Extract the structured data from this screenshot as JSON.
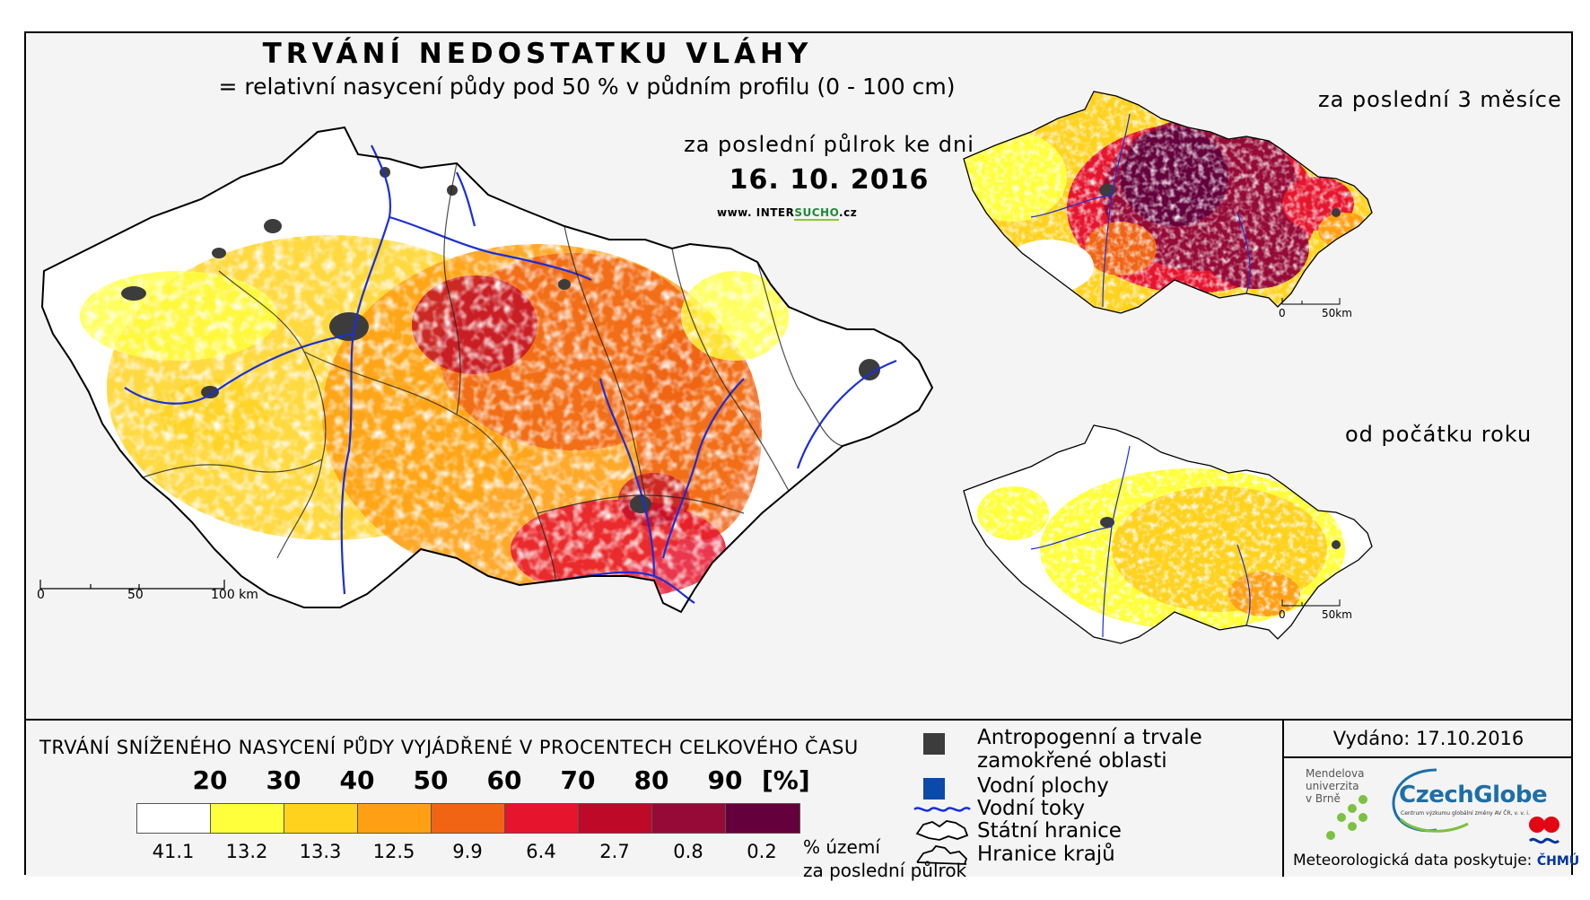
{
  "header": {
    "title": "TRVÁNÍ NEDOSTATKU VLÁHY",
    "subtitle": "= relativní nasycení půdy pod 50 % v půdním profilu (0 - 100 cm)",
    "period": "za poslední půlrok ke dni",
    "date": "16. 10. 2016",
    "website_prefix": "www. INTER",
    "website_brand": "SUCHO",
    "website_suffix": ".cz"
  },
  "insets": {
    "three_months": {
      "label": "za poslední 3 měsíce",
      "scale_zero": "0",
      "scale_end": "50km"
    },
    "year": {
      "label": "od počátku roku",
      "scale_zero": "0",
      "scale_end": "50km"
    }
  },
  "main_scale": {
    "zero": "0",
    "mid": "50",
    "end": "100 km"
  },
  "legend": {
    "title": "TRVÁNÍ SNÍŽENÉHO NASYCENÍ PŮDY VYJÁDŘENÉ V PROCENTECH CELKOVÉHO ČASU",
    "ticks": [
      "20",
      "30",
      "40",
      "50",
      "60",
      "70",
      "80",
      "90"
    ],
    "unit": "[%]",
    "colors": [
      "#ffffff",
      "#ffff3c",
      "#ffd21e",
      "#ffa014",
      "#f06414",
      "#e6142d",
      "#be0a28",
      "#960a37",
      "#64003c"
    ],
    "shares": [
      "41.1",
      "13.2",
      "13.3",
      "12.5",
      "9.9",
      "6.4",
      "2.7",
      "0.8",
      "0.2"
    ],
    "share_note_line1": "% území",
    "share_note_line2": "za poslední půlrok"
  },
  "key": {
    "anthropogenic_line1": "Antropogenní a trvale",
    "anthropogenic_line2": "zamokřené oblasti",
    "water_bodies": "Vodní plochy",
    "rivers": "Vodní toky",
    "state_border": "Státní hranice",
    "regional_border": "Hranice krajů",
    "anthropogenic_color": "#3c3c3c",
    "water_color": "#0a4aa8",
    "river_color": "#1a2fd6"
  },
  "info": {
    "issued": "Vydáno: 17.10.2016",
    "mendel_line1": "Mendelova",
    "mendel_line2": "univerzita",
    "mendel_line3": "v Brně",
    "czechglobe": "CzechGlobe",
    "czechglobe_sub": "Centrum výzkumu globální změny AV ČR, v. v. i.",
    "meteo_prefix": "Meteorologická data poskytuje:",
    "meteo_brand": "ČHMÚ"
  }
}
